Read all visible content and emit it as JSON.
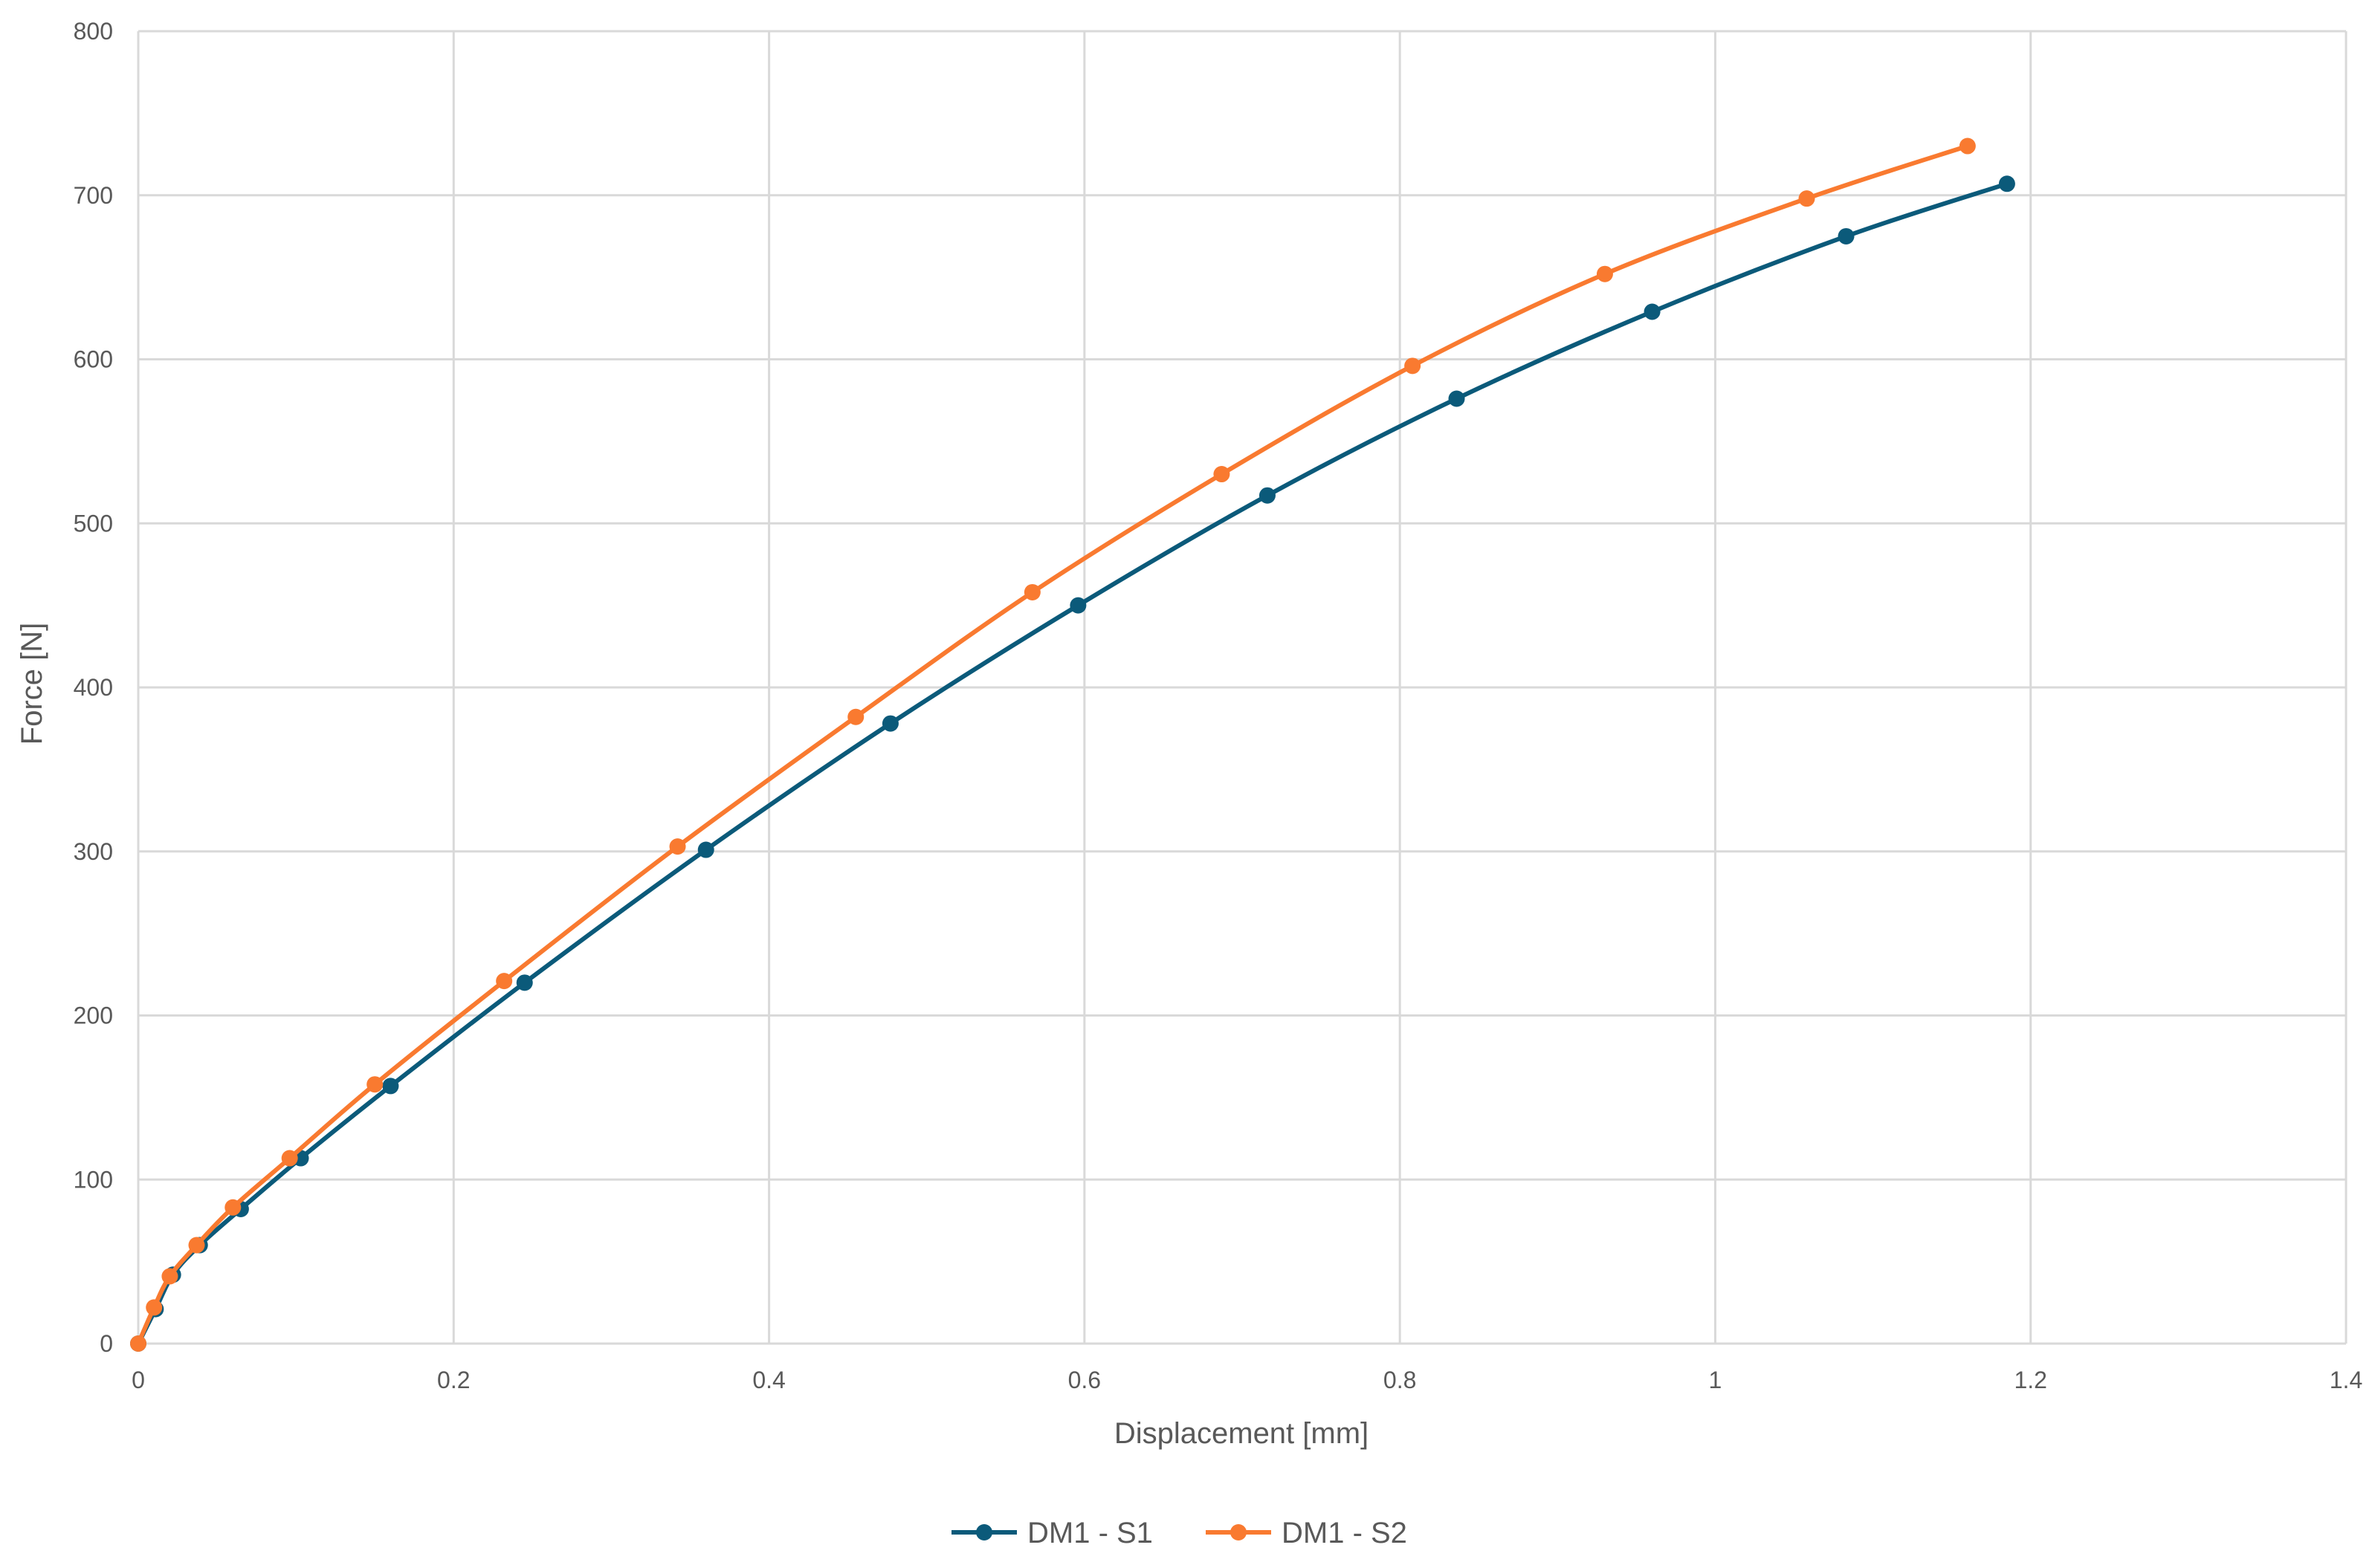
{
  "chart_data": {
    "type": "scatter",
    "title": "",
    "xlabel": "Displacement [mm]",
    "ylabel": "Force [N]",
    "xlim": [
      0,
      1.4
    ],
    "ylim": [
      0,
      800
    ],
    "x_ticks": [
      "0",
      "0.2",
      "0.4",
      "0.6",
      "0.8",
      "1",
      "1.2",
      "1.4"
    ],
    "y_ticks": [
      "0",
      "100",
      "200",
      "300",
      "400",
      "500",
      "600",
      "700",
      "800"
    ],
    "grid": true,
    "legend_position": "bottom",
    "series": [
      {
        "name": "DM1 - S1",
        "color": "#0b5a7a",
        "x": [
          0,
          0.011,
          0.022,
          0.039,
          0.065,
          0.103,
          0.16,
          0.245,
          0.36,
          0.477,
          0.596,
          0.716,
          0.836,
          0.96,
          1.083,
          1.185
        ],
        "y": [
          0,
          21,
          42,
          60,
          82,
          113,
          157,
          220,
          301,
          378,
          450,
          517,
          576,
          629,
          675,
          707
        ]
      },
      {
        "name": "DM1 - S2",
        "color": "#f97a30",
        "x": [
          0,
          0.01,
          0.02,
          0.037,
          0.06,
          0.096,
          0.15,
          0.232,
          0.342,
          0.455,
          0.567,
          0.687,
          0.808,
          0.93,
          1.058,
          1.16
        ],
        "y": [
          0,
          22,
          41,
          60,
          83,
          113,
          158,
          221,
          303,
          382,
          458,
          530,
          596,
          652,
          698,
          730
        ]
      }
    ]
  }
}
